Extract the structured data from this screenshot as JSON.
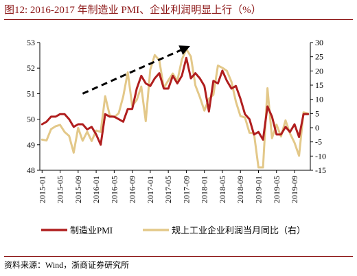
{
  "title": "图12:   2016-2017 年制造业 PMI、企业利润明显上行（%）",
  "source": "资料来源：Wind，浙商证券研究所",
  "colors": {
    "pmi": "#b01e1e",
    "profit": "#e3c889",
    "arrow": "#000000",
    "accent": "#8b1414"
  },
  "chart_data": {
    "type": "line",
    "title": "2016-2017 年制造业 PMI、企业利润明显上行（%）",
    "x": [
      "2015-01",
      "2015-02",
      "2015-03",
      "2015-04",
      "2015-05",
      "2015-06",
      "2015-07",
      "2015-08",
      "2015-09",
      "2015-10",
      "2015-11",
      "2015-12",
      "2016-01",
      "2016-02",
      "2016-03",
      "2016-04",
      "2016-05",
      "2016-06",
      "2016-07",
      "2016-08",
      "2016-09",
      "2016-10",
      "2016-11",
      "2016-12",
      "2017-01",
      "2017-02",
      "2017-03",
      "2017-04",
      "2017-05",
      "2017-06",
      "2017-07",
      "2017-08",
      "2017-09",
      "2017-10",
      "2017-11",
      "2017-12",
      "2018-01",
      "2018-02",
      "2018-03",
      "2018-04",
      "2018-05",
      "2018-06",
      "2018-07",
      "2018-08",
      "2018-09",
      "2018-10",
      "2018-11",
      "2018-12",
      "2019-01",
      "2019-02",
      "2019-03",
      "2019-04",
      "2019-05",
      "2019-06",
      "2019-07",
      "2019-08",
      "2019-09",
      "2019-10",
      "2019-11",
      "2019-12"
    ],
    "x_tick_labels": [
      "2015-01",
      "2015-05",
      "2015-09",
      "2016-01",
      "2016-05",
      "2016-09",
      "2017-01",
      "2017-05",
      "2017-09",
      "2018-01",
      "2018-05",
      "2018-09",
      "2019-01",
      "2019-05",
      "2019-09"
    ],
    "left_axis": {
      "ylim": [
        48,
        53
      ],
      "ticks": [
        "48",
        "49",
        "50",
        "51",
        "52",
        "53"
      ]
    },
    "right_axis": {
      "ylim": [
        -15,
        30
      ],
      "ticks": [
        "-15",
        "-10",
        "-5",
        "0",
        "5",
        "10",
        "15",
        "20",
        "25",
        "30"
      ]
    },
    "series": [
      {
        "name": "制造业PMI",
        "axis": "left",
        "values": [
          49.8,
          49.9,
          50.1,
          50.1,
          50.2,
          50.2,
          50.0,
          49.7,
          49.8,
          49.8,
          49.6,
          49.7,
          49.4,
          49.0,
          50.2,
          50.1,
          50.1,
          50.0,
          49.9,
          50.4,
          50.4,
          51.2,
          51.7,
          51.4,
          51.3,
          51.6,
          51.8,
          51.2,
          51.2,
          51.7,
          51.4,
          51.7,
          52.4,
          51.6,
          51.8,
          51.6,
          51.3,
          50.3,
          51.5,
          51.4,
          51.9,
          51.5,
          51.2,
          51.3,
          50.8,
          50.2,
          50.0,
          49.4,
          49.5,
          49.2,
          50.5,
          50.1,
          49.4,
          49.4,
          49.7,
          49.5,
          49.8,
          49.3,
          50.2,
          50.2
        ]
      },
      {
        "name": "规上工业企业利润当月同比（右）",
        "axis": "right",
        "values": [
          -4.2,
          -4.5,
          -0.5,
          0.5,
          1.0,
          -1.5,
          -2.9,
          -8.8,
          -0.1,
          -4.6,
          -1.4,
          -4.7,
          -1.0,
          -1.5,
          11.1,
          4.4,
          3.7,
          5.1,
          11.0,
          19.5,
          7.7,
          9.8,
          14.5,
          2.3,
          20.5,
          25.6,
          23.8,
          14.0,
          16.7,
          19.1,
          16.5,
          24.0,
          27.7,
          25.1,
          14.9,
          10.8,
          6.0,
          10.2,
          11.6,
          21.9,
          21.1,
          20.0,
          16.2,
          9.2,
          4.1,
          3.6,
          -1.8,
          -1.9,
          -14.0,
          -14.0,
          13.9,
          -3.7,
          1.1,
          -3.1,
          2.6,
          -2.0,
          -5.3,
          -9.9,
          5.4,
          5.0
        ]
      }
    ],
    "legend": {
      "placement": "bottom",
      "entries": [
        "制造业PMI",
        "规上工业企业利润当月同比（右）"
      ]
    },
    "annotation": "dashed upward arrow spanning 2015-10 to 2017-09",
    "grid": false
  }
}
